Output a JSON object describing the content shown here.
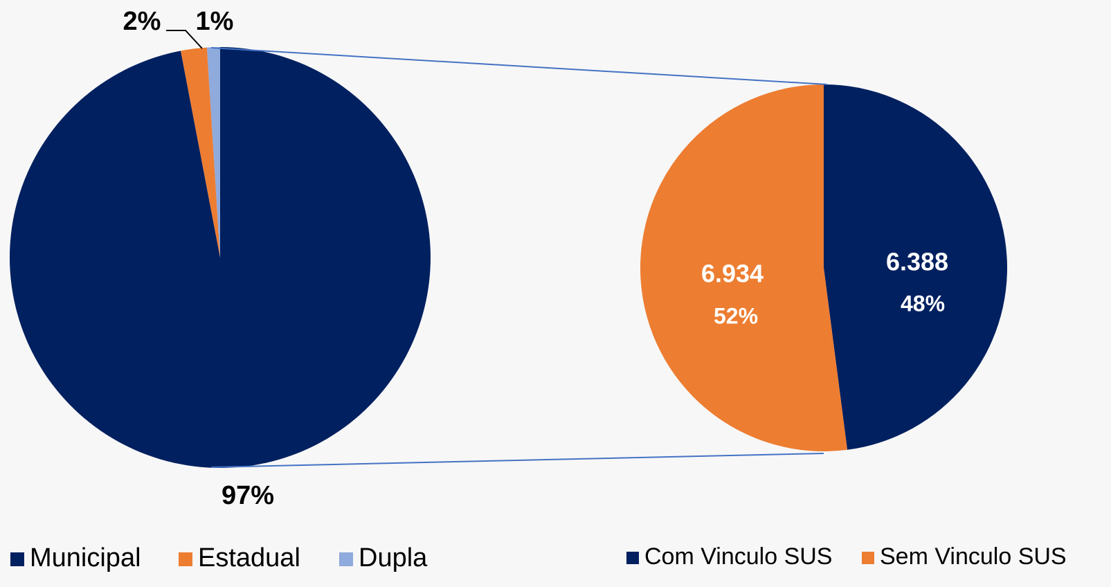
{
  "chart_data": [
    {
      "type": "pie",
      "categories": [
        "Municipal",
        "Estadual",
        "Dupla"
      ],
      "values": [
        97,
        2,
        1
      ],
      "value_labels": [
        "97%",
        "2%",
        "1%"
      ],
      "colors": [
        "#002060",
        "#ED7D31",
        "#8FAADC"
      ]
    },
    {
      "type": "pie",
      "categories": [
        "Com Vinculo SUS",
        "Sem Vinculo SUS"
      ],
      "values": [
        6388,
        6934
      ],
      "value_labels": [
        "6.388",
        "6.934"
      ],
      "percentages": [
        48,
        52
      ],
      "percentage_labels": [
        "48%",
        "52%"
      ],
      "colors": [
        "#002060",
        "#ED7D31"
      ]
    }
  ]
}
